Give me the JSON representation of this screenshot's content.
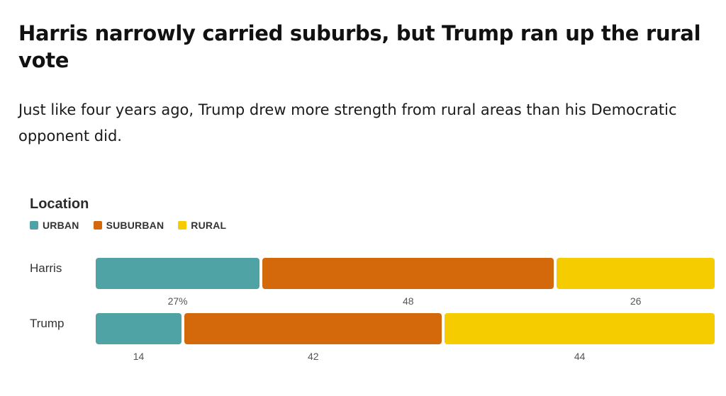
{
  "title": "Harris narrowly carried suburbs, but Trump ran up the rural vote",
  "subtitle": "Just like four years ago, Trump drew more strength from rural areas than his Democratic opponent did.",
  "chart_data": {
    "type": "bar",
    "orientation": "horizontal",
    "stacked": true,
    "legend_title": "Location",
    "legend_placement": "top-left",
    "categories": [
      "Harris",
      "Trump"
    ],
    "series": [
      {
        "name": "URBAN",
        "color": "#4fa3a5",
        "values": [
          27,
          14
        ],
        "labels": [
          "27%",
          "14"
        ]
      },
      {
        "name": "SUBURBAN",
        "color": "#d4690c",
        "values": [
          48,
          42
        ],
        "labels": [
          "48",
          "42"
        ]
      },
      {
        "name": "RURAL",
        "color": "#f4cc00",
        "values": [
          26,
          44
        ],
        "labels": [
          "26",
          "44"
        ]
      }
    ],
    "grid": false
  }
}
